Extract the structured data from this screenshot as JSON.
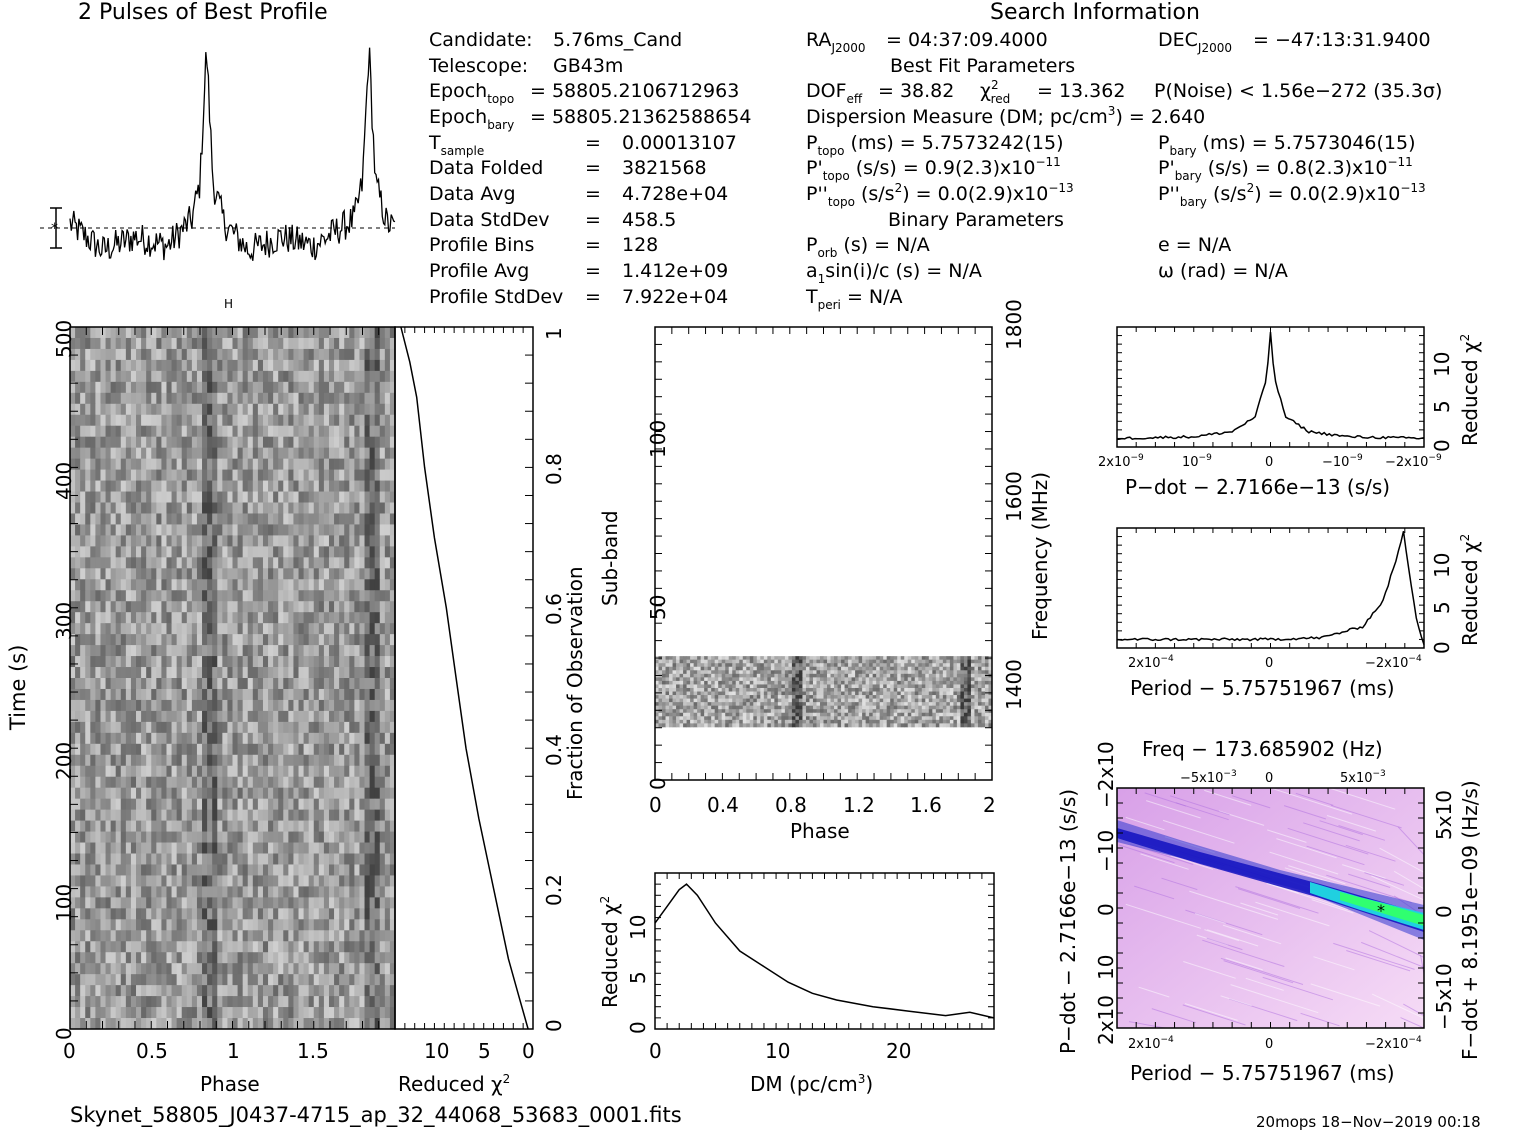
{
  "header": {
    "profile_title": "2 Pulses of Best Profile",
    "search_title": "Search Information",
    "best_fit_title": "Best Fit Parameters",
    "binary_title": "Binary Parameters"
  },
  "info_left": [
    {
      "label": "Candidate:",
      "value": "5.76ms_Cand"
    },
    {
      "label": "Telescope:",
      "value": "GB43m"
    },
    {
      "label": "Epoch",
      "sub": "topo",
      "value": "= 58805.2106712963"
    },
    {
      "label": "Epoch",
      "sub": "bary",
      "value": "= 58805.21362588654"
    },
    {
      "label": "T",
      "sub": "sample",
      "value": "0.00013107"
    },
    {
      "label": "Data Folded",
      "value": "3821568"
    },
    {
      "label": "Data Avg",
      "value": "4.728e+04"
    },
    {
      "label": "Data StdDev",
      "value": "458.5"
    },
    {
      "label": "Profile Bins",
      "value": "128"
    },
    {
      "label": "Profile Avg",
      "value": "1.412e+09"
    },
    {
      "label": "Profile StdDev",
      "value": "7.922e+04"
    }
  ],
  "info_right": {
    "ra": "= 04:37:09.4000",
    "dec": "= −47:13:31.9400",
    "dof": "= 38.82",
    "chi2": "= 13.362",
    "pnoise": "P(Noise) < 1.56e−272   (35.3σ)",
    "dm": "Dispersion Measure (DM; pc/cm",
    "dm_val": ") = 2.640",
    "ptopo": "(ms) =  5.7573242(15)",
    "pbary": "(ms) =  5.7573046(15)",
    "pdtopo": "(s/s) =  0.9(2.3)x10",
    "pdtopo_exp": "−11",
    "pdbary": "(s/s) =  0.8(2.3)x10",
    "pdbary_exp": "−11",
    "pddtopo": ") = 0.0(2.9)x10",
    "pddtopo_exp": "−13",
    "pddbary": ") = 0.0(2.9)x10",
    "pddbary_exp": "−13",
    "porb": "(s) = N/A",
    "a1": "sin(i)/c (s) = N/A",
    "tperi": "= N/A",
    "e": "e = N/A",
    "omega": "ω (rad) = N/A"
  },
  "footer": {
    "filename": "Skynet_58805_J0437-4715_ap_32_44068_53683_0001.fits",
    "stamp": "20mops 18−Nov−2019 00:18"
  },
  "colors": {
    "ink": "#000000",
    "map_low": "#f0c8f0",
    "map_mid": "#1020d0",
    "map_high": "#30ff80"
  },
  "chart_data": [
    {
      "id": "profile",
      "type": "line",
      "title": "2 Pulses of Best Profile",
      "x": [
        0,
        0.2,
        0.4,
        0.6,
        0.75,
        0.8,
        0.84,
        0.88,
        0.95,
        1.1,
        1.3,
        1.5,
        1.75,
        1.8,
        1.84,
        1.88,
        1.95,
        2.0
      ],
      "values": [
        0.05,
        -0.25,
        -0.1,
        -0.2,
        0.1,
        0.5,
        2.0,
        0.5,
        0.05,
        -0.25,
        -0.1,
        -0.2,
        0.1,
        0.5,
        2.0,
        0.5,
        0.05,
        0.0
      ]
    },
    {
      "id": "time-phase",
      "type": "heatmap",
      "xlabel": "Phase",
      "ylabel": "Time (s)",
      "xlim": [
        0,
        2
      ],
      "ylim": [
        0,
        500
      ],
      "xticks": [
        "0",
        "0.5",
        "1",
        "1.5"
      ],
      "yticks": [
        "0",
        "100",
        "200",
        "300",
        "400",
        "500"
      ]
    },
    {
      "id": "chi2-time",
      "type": "line",
      "xlabel": "Reduced χ",
      "ylabel": "Fraction of Observation",
      "xticks": [
        "10",
        "5",
        "0"
      ],
      "yticks": [
        "0",
        "0.2",
        "0.4",
        "0.6",
        "0.8",
        "1"
      ],
      "x": [
        0,
        0.05,
        0.1,
        0.2,
        0.3,
        0.4,
        0.5,
        0.6,
        0.7,
        0.8,
        0.9,
        0.95,
        1.0
      ],
      "values": [
        0.5,
        1.5,
        2.5,
        4.0,
        5.5,
        6.8,
        7.8,
        8.8,
        10.0,
        11.0,
        11.8,
        12.5,
        13.4
      ]
    },
    {
      "id": "subband-phase",
      "type": "heatmap",
      "xlabel": "Phase",
      "ylabel": "Sub-band",
      "y2label": "Frequency (MHz)",
      "xticks": [
        "0",
        "0.4",
        "0.8",
        "1.2",
        "1.6",
        "2"
      ],
      "yticks": [
        "0",
        "50",
        "100"
      ],
      "y2ticks": [
        "1400",
        "1600",
        "1800"
      ],
      "band": [
        15,
        35
      ],
      "ylim": [
        0,
        128
      ]
    },
    {
      "id": "chi2-dm",
      "type": "line",
      "xlabel": "DM (pc/cm",
      "ylabel": "Reduced χ",
      "xticks": [
        "0",
        "10",
        "20"
      ],
      "yticks": [
        "0",
        "5",
        "10"
      ],
      "xlim": [
        0,
        28
      ],
      "ylim": [
        0,
        14
      ],
      "x": [
        0,
        1,
        2,
        2.6,
        3.5,
        5,
        7,
        9,
        11,
        13,
        15,
        18,
        21,
        24,
        26,
        28
      ],
      "values": [
        9.5,
        11,
        12.5,
        13,
        12,
        9.5,
        7.0,
        5.6,
        4.2,
        3.2,
        2.6,
        2.0,
        1.6,
        1.2,
        1.5,
        1.0
      ]
    },
    {
      "id": "chi2-pdot",
      "type": "line",
      "xlabel": "P−dot − 2.7166e−13 (s/s)",
      "ylabel": "Reduced χ",
      "xticks": [
        "2x10",
        "10",
        "0",
        "−10",
        "−2x10"
      ],
      "yticks": [
        "0",
        "5",
        "10"
      ],
      "x": [
        -2,
        -1,
        -0.5,
        -0.2,
        -0.05,
        0,
        0.05,
        0.2,
        0.5,
        1,
        2
      ],
      "values": [
        1,
        1.2,
        1.8,
        3.5,
        8,
        13.5,
        8,
        3.5,
        1.8,
        1.2,
        1
      ]
    },
    {
      "id": "chi2-period",
      "type": "line",
      "xlabel": "Period − 5.75751967 (ms)",
      "ylabel": "Reduced χ",
      "xticks": [
        "2x10",
        "0",
        "−2x10"
      ],
      "yticks": [
        "0",
        "5",
        "10"
      ],
      "x": [
        -2.2,
        -1.5,
        -0.5,
        0,
        0.8,
        1.4,
        1.7,
        1.9,
        2.0,
        2.1,
        2.2,
        2.3
      ],
      "values": [
        1,
        1,
        1,
        1,
        1.2,
        2.5,
        5.5,
        10.5,
        13.5,
        8,
        3,
        0.5
      ]
    },
    {
      "id": "ppdot-map",
      "type": "heatmap",
      "title": "Freq − 173.685902 (Hz)",
      "xlabel": "Period − 5.75751967 (ms)",
      "ylabel": "P−dot − 2.7166e−13 (s/s)",
      "y2label": "F−dot + 8.1951e−09 (Hz/s)",
      "xticks": [
        "2x10",
        "0",
        "−2x10"
      ],
      "x2ticks": [
        "−5x10",
        "0",
        "5x10"
      ],
      "yticks": [
        "2x10",
        "10",
        "0",
        "−10",
        "−2x10"
      ],
      "y2ticks": [
        "−5x10",
        "0",
        "5x10"
      ]
    }
  ]
}
